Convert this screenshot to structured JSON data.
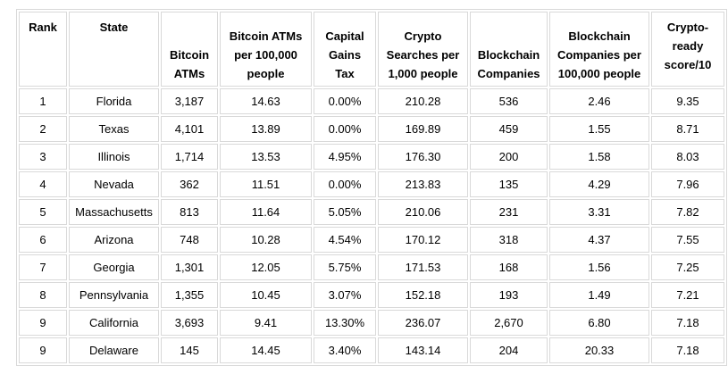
{
  "table": {
    "headers": {
      "rank": "Rank",
      "state": "State",
      "bitcoin_atms": [
        "Bitcoin",
        "ATMs"
      ],
      "atms_per_100k": [
        "Bitcoin ATMs",
        "per 100,000",
        "people"
      ],
      "capital_gains_tax": [
        "Capital",
        "Gains",
        "Tax"
      ],
      "crypto_searches": [
        "Crypto",
        "Searches per",
        "1,000 people"
      ],
      "blockchain_companies": [
        "Blockchain",
        "Companies"
      ],
      "blockchain_per_100k": [
        "Blockchain",
        "Companies per",
        "100,000 people"
      ],
      "score": [
        "Crypto-",
        "ready",
        "score/10"
      ]
    },
    "rows": [
      [
        "1",
        "Florida",
        "3,187",
        "14.63",
        "0.00%",
        "210.28",
        "536",
        "2.46",
        "9.35"
      ],
      [
        "2",
        "Texas",
        "4,101",
        "13.89",
        "0.00%",
        "169.89",
        "459",
        "1.55",
        "8.71"
      ],
      [
        "3",
        "Illinois",
        "1,714",
        "13.53",
        "4.95%",
        "176.30",
        "200",
        "1.58",
        "8.03"
      ],
      [
        "4",
        "Nevada",
        "362",
        "11.51",
        "0.00%",
        "213.83",
        "135",
        "4.29",
        "7.96"
      ],
      [
        "5",
        "Massachusetts",
        "813",
        "11.64",
        "5.05%",
        "210.06",
        "231",
        "3.31",
        "7.82"
      ],
      [
        "6",
        "Arizona",
        "748",
        "10.28",
        "4.54%",
        "170.12",
        "318",
        "4.37",
        "7.55"
      ],
      [
        "7",
        "Georgia",
        "1,301",
        "12.05",
        "5.75%",
        "171.53",
        "168",
        "1.56",
        "7.25"
      ],
      [
        "8",
        "Pennsylvania",
        "1,355",
        "10.45",
        "3.07%",
        "152.18",
        "193",
        "1.49",
        "7.21"
      ],
      [
        "9",
        "California",
        "3,693",
        "9.41",
        "13.30%",
        "236.07",
        "2,670",
        "6.80",
        "7.18"
      ],
      [
        "9",
        "Delaware",
        "145",
        "14.45",
        "3.40%",
        "143.14",
        "204",
        "20.33",
        "7.18"
      ]
    ]
  }
}
